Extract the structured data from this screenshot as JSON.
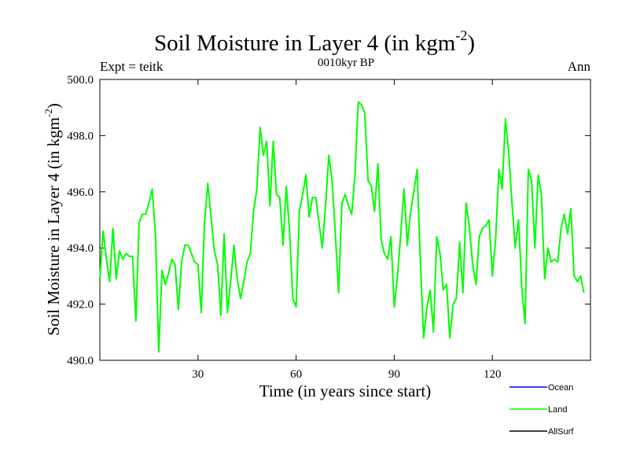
{
  "chart_data": {
    "type": "line",
    "title": "Soil Moisture in Layer 4 (in kgm",
    "title_sup": "-2",
    "title_close": ")",
    "subtitle_left": "Expt = teitk",
    "subtitle_center": "0010kyr BP",
    "subtitle_right": "Ann",
    "xlabel": "Time (in years since start)",
    "ylabel": "Soil Moisture in Layer 4 (in kgm",
    "ylabel_sup": "-2",
    "ylabel_close": ")",
    "xlim": [
      0,
      150
    ],
    "ylim": [
      490.0,
      500.0
    ],
    "x_ticks": [
      30,
      60,
      90,
      120
    ],
    "x_tick_labels": [
      "30",
      "60",
      "90",
      "120"
    ],
    "y_ticks": [
      490,
      492,
      494,
      496,
      498,
      500
    ],
    "y_tick_labels": [
      "490.0",
      "492.0",
      "494.0",
      "496.0",
      "498.0",
      "500.0"
    ],
    "legend": [
      {
        "name": "Ocean",
        "color": "#0000ff"
      },
      {
        "name": "Land",
        "color": "#00ff00"
      },
      {
        "name": "AllSurf",
        "color": "#000000"
      }
    ],
    "series": [
      {
        "name": "Land",
        "color": "#00ff00",
        "x_start": 0,
        "x_step": 1,
        "values": [
          492.9,
          494.6,
          493.6,
          492.8,
          494.7,
          492.9,
          493.9,
          493.6,
          493.8,
          493.7,
          493.7,
          491.4,
          494.9,
          495.2,
          495.2,
          495.6,
          496.1,
          494.5,
          490.3,
          493.2,
          492.7,
          493.1,
          493.6,
          493.4,
          491.8,
          493.5,
          494.1,
          494.1,
          493.8,
          493.5,
          493.4,
          491.7,
          494.9,
          496.3,
          495.1,
          493.9,
          493.4,
          491.6,
          494.5,
          491.7,
          492.8,
          494.1,
          492.9,
          492.2,
          492.8,
          493.5,
          493.8,
          495.3,
          496.1,
          498.3,
          497.3,
          497.8,
          495.5,
          497.8,
          495.9,
          495.8,
          494.1,
          496.2,
          494.6,
          492.2,
          491.9,
          495.3,
          495.9,
          496.6,
          495.1,
          495.8,
          495.8,
          494.9,
          494.0,
          495.5,
          497.3,
          496.4,
          494.5,
          492.4,
          495.6,
          495.9,
          495.5,
          495.2,
          496.6,
          499.2,
          499.1,
          498.8,
          496.4,
          496.2,
          495.3,
          497.0,
          494.3,
          493.8,
          493.6,
          494.4,
          491.9,
          493.0,
          494.5,
          496.1,
          494.1,
          495.3,
          496.0,
          496.8,
          493.5,
          490.8,
          491.9,
          492.5,
          491.0,
          494.4,
          493.8,
          492.5,
          492.7,
          490.8,
          492.0,
          492.2,
          494.2,
          492.4,
          495.6,
          494.7,
          493.4,
          492.7,
          494.4,
          494.7,
          494.8,
          495.0,
          493.0,
          494.3,
          496.8,
          496.1,
          498.6,
          497.4,
          495.6,
          494.0,
          495.0,
          492.6,
          491.3,
          496.8,
          496.4,
          494.0,
          496.6,
          495.9,
          492.9,
          494.0,
          493.5,
          493.6,
          493.5,
          494.7,
          495.2,
          494.5,
          495.4,
          493.0,
          492.8,
          493.0,
          492.4
        ]
      }
    ]
  }
}
